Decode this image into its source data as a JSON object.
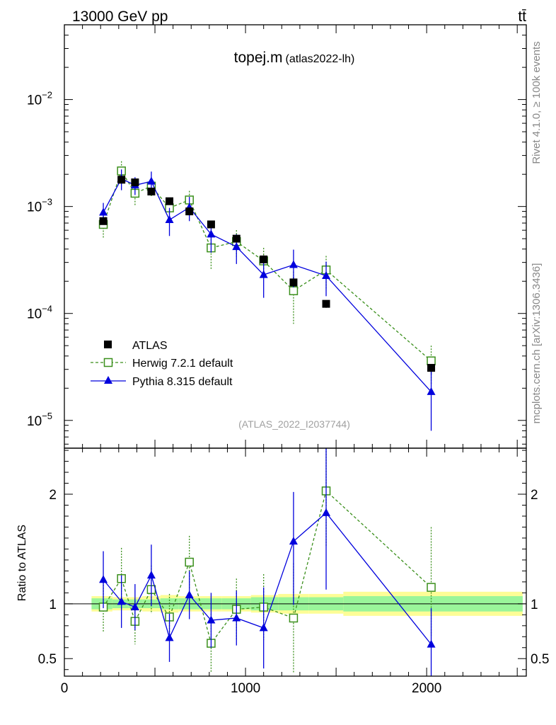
{
  "header": {
    "energy_label": "13000 GeV pp",
    "process_label": "tt̄"
  },
  "plot_title": {
    "main": "topej.m",
    "sub": "(atlas2022-lh)"
  },
  "analysis_id": "(ATLAS_2022_I2037744)",
  "side_labels": {
    "rivet": "Rivet 4.1.0, ≥ 100k events",
    "source": "mcplots.cern.ch [arXiv:1306.3436]"
  },
  "ratio_ylabel": "Ratio to ATLAS",
  "colors": {
    "data": "#000000",
    "herwig": "#3a8f1b",
    "pythia": "#0000dd",
    "band_inner": "#9af59a",
    "band_outer": "#fdfd96"
  },
  "chart_data": [
    {
      "type": "scatter",
      "panel": "main",
      "yscale": "log",
      "xlim": [
        0,
        2550
      ],
      "ylim": [
        5.5e-06,
        0.05
      ],
      "y_ticks": [
        {
          "value": 0.01,
          "base": "10",
          "exp": "−2"
        },
        {
          "value": 0.001,
          "base": "10",
          "exp": "−3"
        },
        {
          "value": 0.0001,
          "base": "10",
          "exp": "−4"
        },
        {
          "value": 1e-05,
          "base": "10",
          "exp": "−5"
        }
      ],
      "x": [
        215,
        315,
        390,
        480,
        580,
        690,
        810,
        950,
        1100,
        1265,
        1445,
        2025
      ],
      "series": [
        {
          "name": "ATLAS",
          "marker": "square-filled",
          "values": [
            0.00073,
            0.00178,
            0.00168,
            0.00138,
            0.00112,
            0.0009,
            0.00068,
            0.0005,
            0.00032,
            0.000195,
            0.000123,
            3.1e-05
          ],
          "err_lo": [
            7e-05,
            0.00012,
            0.00011,
            0.0001,
            8e-05,
            7e-05,
            5e-05,
            4e-05,
            3e-05,
            2.5e-05,
            1e-05,
            4e-06
          ],
          "err_hi": [
            7e-05,
            0.00012,
            0.00011,
            0.0001,
            8e-05,
            7e-05,
            5e-05,
            4e-05,
            3e-05,
            2.5e-05,
            1e-05,
            4e-06
          ]
        },
        {
          "name": "Herwig 7.2.1 default",
          "marker": "square-open",
          "line": "dashed",
          "values": [
            0.00068,
            0.00215,
            0.00133,
            0.00155,
            0.00097,
            0.00115,
            0.00041,
            0.00047,
            0.00031,
            0.000163,
            0.000255,
            3.6e-05
          ],
          "err_lo": [
            0.00018,
            0.0004,
            0.0003,
            0.0003,
            0.00022,
            0.00025,
            0.00015,
            0.00013,
            0.0001,
            8.3e-05,
            9e-05,
            1.4e-05
          ],
          "err_hi": [
            0.00018,
            0.0005,
            0.0003,
            0.0003,
            0.00022,
            0.00025,
            0.00015,
            0.00013,
            0.0001,
            8.3e-05,
            9e-05,
            1.4e-05
          ]
        },
        {
          "name": "Pythia 8.315 default",
          "marker": "triangle-filled",
          "line": "solid",
          "values": [
            0.00088,
            0.00182,
            0.00158,
            0.00172,
            0.00075,
            0.00098,
            0.00055,
            0.00042,
            0.00023,
            0.000285,
            0.000225,
            1.85e-05
          ],
          "err_lo": [
            0.0002,
            0.0004,
            0.0003,
            0.0004,
            0.00022,
            0.00025,
            0.00018,
            0.00013,
            9e-05,
            0.00011,
            8e-05,
            1.05e-05
          ],
          "err_hi": [
            0.0002,
            0.0004,
            0.0003,
            0.0004,
            0.00022,
            0.00025,
            0.00018,
            0.00013,
            9e-05,
            0.00011,
            8e-05,
            1.05e-05
          ]
        }
      ]
    },
    {
      "type": "line",
      "panel": "ratio",
      "ylabel": "Ratio to ATLAS",
      "xlim": [
        0,
        2550
      ],
      "ylim": [
        0.34,
        2.42
      ],
      "x_ticks": [
        0,
        1000,
        2000
      ],
      "y_ticks": [
        0.5,
        1,
        2
      ],
      "x": [
        215,
        315,
        390,
        480,
        580,
        690,
        810,
        950,
        1100,
        1265,
        1445,
        2025
      ],
      "band": {
        "edges": [
          150,
          265,
          355,
          430,
          530,
          630,
          750,
          870,
          1030,
          1180,
          1350,
          1540,
          2530
        ],
        "inner": [
          0.05,
          0.04,
          0.04,
          0.04,
          0.05,
          0.05,
          0.05,
          0.05,
          0.06,
          0.06,
          0.06,
          0.07
        ],
        "outer": [
          0.07,
          0.06,
          0.06,
          0.07,
          0.08,
          0.07,
          0.07,
          0.07,
          0.08,
          0.09,
          0.09,
          0.11
        ]
      },
      "series": [
        {
          "name": "Herwig 7.2.1 default",
          "values": [
            0.97,
            1.23,
            0.84,
            1.13,
            0.88,
            1.38,
            0.64,
            0.95,
            0.97,
            0.87,
            2.03,
            1.15
          ],
          "err_lo": [
            0.23,
            0.28,
            0.21,
            0.22,
            0.21,
            0.24,
            0.27,
            0.28,
            0.3,
            0.5,
            0.5,
            0.44
          ],
          "err_hi": [
            0.23,
            0.28,
            0.21,
            0.22,
            0.21,
            0.24,
            0.27,
            0.28,
            0.3,
            0.5,
            0.5,
            0.55
          ]
        },
        {
          "name": "Pythia 8.315 default",
          "values": [
            1.22,
            1.02,
            0.97,
            1.26,
            0.69,
            1.08,
            0.85,
            0.87,
            0.78,
            1.57,
            1.83,
            0.63
          ],
          "err_lo": [
            0.26,
            0.24,
            0.21,
            0.28,
            0.22,
            0.22,
            0.25,
            0.25,
            0.37,
            0.58,
            0.7,
            0.3
          ],
          "err_hi": [
            0.26,
            0.24,
            0.21,
            0.28,
            0.22,
            0.22,
            0.25,
            0.25,
            0.37,
            0.45,
            0.6,
            0.33
          ]
        }
      ]
    }
  ]
}
